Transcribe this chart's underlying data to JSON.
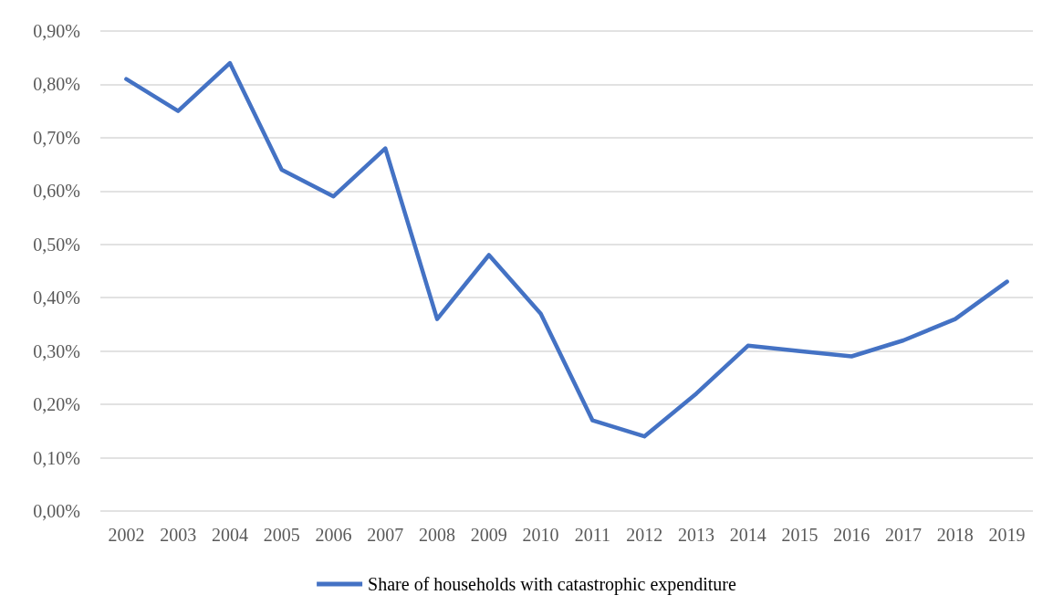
{
  "chart_data": {
    "type": "line",
    "categories": [
      "2002",
      "2003",
      "2004",
      "2005",
      "2006",
      "2007",
      "2008",
      "2009",
      "2010",
      "2011",
      "2012",
      "2013",
      "2014",
      "2015",
      "2016",
      "2017",
      "2018",
      "2019"
    ],
    "series": [
      {
        "name": "Share of households with catastrophic expenditure",
        "color": "#4472c4",
        "values": [
          0.81,
          0.75,
          0.84,
          0.64,
          0.59,
          0.68,
          0.36,
          0.48,
          0.37,
          0.17,
          0.14,
          0.22,
          0.31,
          0.3,
          0.29,
          0.32,
          0.36,
          0.43
        ]
      }
    ],
    "ylim": [
      0,
      0.9
    ],
    "yticks": [
      {
        "value": 0,
        "label": "0,00%"
      },
      {
        "value": 0.1,
        "label": "0,10%"
      },
      {
        "value": 0.2,
        "label": "0,20%"
      },
      {
        "value": 0.3,
        "label": "0,30%"
      },
      {
        "value": 0.4,
        "label": "0,40%"
      },
      {
        "value": 0.5,
        "label": "0,50%"
      },
      {
        "value": 0.6,
        "label": "0,60%"
      },
      {
        "value": 0.7,
        "label": "0,70%"
      },
      {
        "value": 0.8,
        "label": "0,80%"
      },
      {
        "value": 0.9,
        "label": "0,90%"
      }
    ],
    "grid": "y",
    "legend": "bottom",
    "marker": "none",
    "line_style": "solid"
  }
}
